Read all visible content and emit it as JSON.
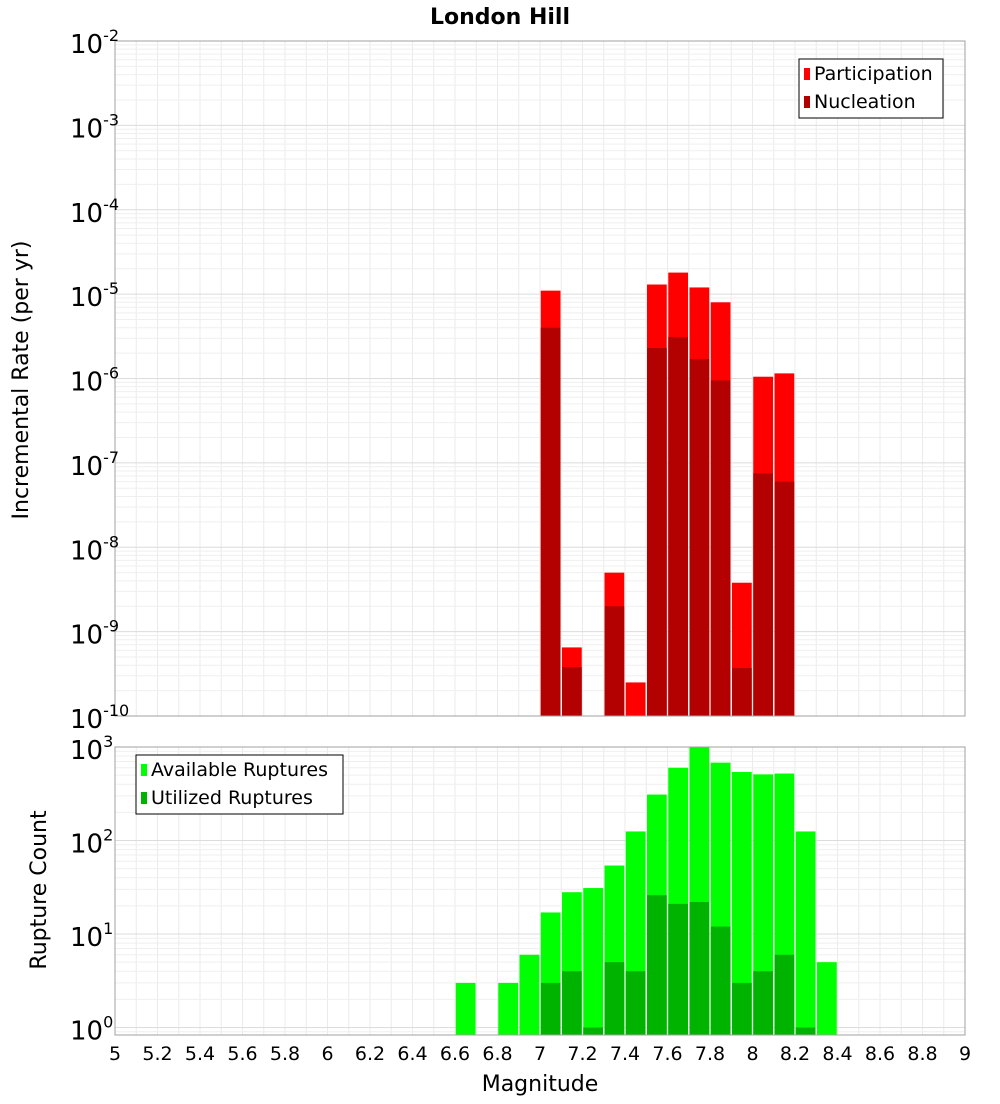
{
  "chart_data": [
    {
      "type": "bar",
      "title": "London Hill",
      "xlabel": "",
      "ylabel": "Incremental Rate (per yr)",
      "yscale": "log",
      "ylim_exp": [
        -10,
        -2
      ],
      "xlim": [
        5,
        9
      ],
      "grid": true,
      "legend_position": "top-right",
      "y_ticks": [
        {
          "base": "10",
          "exp": "-2"
        },
        {
          "base": "10",
          "exp": "-3"
        },
        {
          "base": "10",
          "exp": "-4"
        },
        {
          "base": "10",
          "exp": "-5"
        },
        {
          "base": "10",
          "exp": "-6"
        },
        {
          "base": "10",
          "exp": "-7"
        },
        {
          "base": "10",
          "exp": "-8"
        },
        {
          "base": "10",
          "exp": "-9"
        },
        {
          "base": "10",
          "exp": "-10"
        }
      ],
      "x": [
        7.05,
        7.15,
        7.35,
        7.45,
        7.55,
        7.65,
        7.75,
        7.85,
        7.95,
        8.05,
        8.15
      ],
      "series": [
        {
          "name": "Participation",
          "color": "#ff0000",
          "values": [
            1.1e-05,
            6.5e-10,
            5e-09,
            2.5e-10,
            1.3e-05,
            1.8e-05,
            1.2e-05,
            8e-06,
            3.8e-09,
            1.05e-06,
            1.15e-06
          ]
        },
        {
          "name": "Nucleation",
          "color": "#b30000",
          "values": [
            4e-06,
            3.8e-10,
            2e-09,
            null,
            2.3e-06,
            3.1e-06,
            1.7e-06,
            9.5e-07,
            3.7e-10,
            7.5e-08,
            6e-08
          ]
        }
      ]
    },
    {
      "type": "bar",
      "title": "",
      "xlabel": "Magnitude",
      "ylabel": "Rupture Count",
      "yscale": "log",
      "ylim_exp": [
        -0.08,
        3
      ],
      "xlim": [
        5,
        9
      ],
      "grid": true,
      "legend_position": "top-left",
      "y_ticks": [
        {
          "base": "10",
          "exp": "3"
        },
        {
          "base": "10",
          "exp": "2"
        },
        {
          "base": "10",
          "exp": "1"
        },
        {
          "base": "10",
          "exp": "0"
        }
      ],
      "x_ticks": [
        "5",
        "5.2",
        "5.4",
        "5.6",
        "5.8",
        "6",
        "6.2",
        "6.4",
        "6.6",
        "6.8",
        "7",
        "7.2",
        "7.4",
        "7.6",
        "7.8",
        "8",
        "8.2",
        "8.4",
        "8.6",
        "8.8",
        "9"
      ],
      "x": [
        6.65,
        6.85,
        6.95,
        7.05,
        7.15,
        7.25,
        7.35,
        7.45,
        7.55,
        7.65,
        7.75,
        7.85,
        7.95,
        8.05,
        8.15,
        8.25,
        8.35
      ],
      "series": [
        {
          "name": "Available Ruptures",
          "color": "#00ff00",
          "values": [
            3,
            3,
            6,
            17,
            28,
            31,
            54,
            125,
            310,
            600,
            1000,
            680,
            540,
            510,
            520,
            125,
            5
          ]
        },
        {
          "name": "Utilized Ruptures",
          "color": "#00b300",
          "values": [
            null,
            null,
            null,
            3,
            4,
            1,
            5,
            4,
            26,
            21,
            22,
            12,
            3,
            4,
            6,
            1,
            null
          ]
        }
      ]
    }
  ]
}
